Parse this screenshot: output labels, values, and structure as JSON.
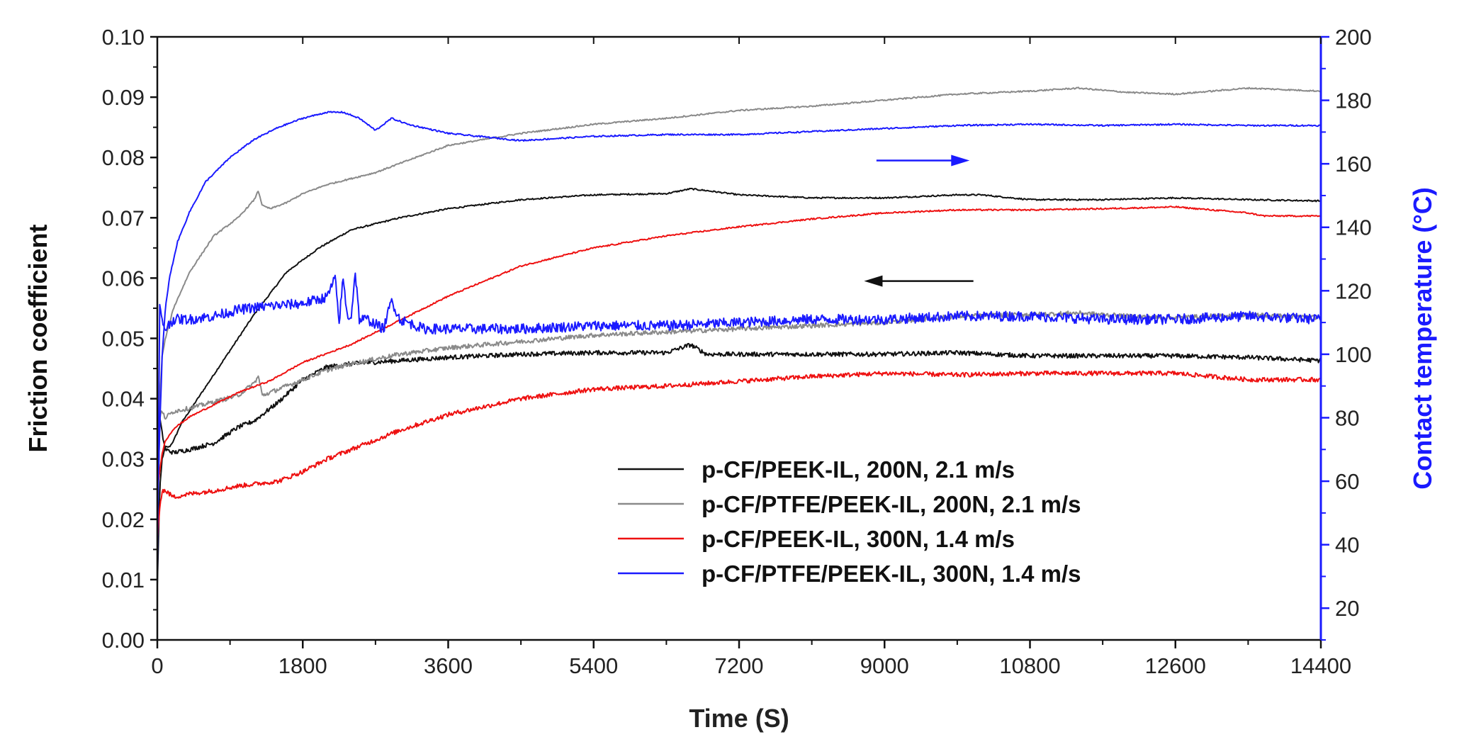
{
  "chart_data": {
    "type": "line",
    "xlabel": "Time (S)",
    "ylabel": "Friction coefficient",
    "y2label": "Contact temperature (°C)",
    "xlim": [
      0,
      14400
    ],
    "ylim": [
      0,
      0.1
    ],
    "y2lim": [
      10,
      200
    ],
    "x_ticks": [
      "0",
      "1800",
      "3600",
      "5400",
      "7200",
      "9000",
      "10800",
      "12600",
      "14400"
    ],
    "y_ticks": [
      "0.00",
      "0.01",
      "0.02",
      "0.03",
      "0.04",
      "0.05",
      "0.06",
      "0.07",
      "0.08",
      "0.09",
      "0.10"
    ],
    "y2_ticks": [
      "20",
      "40",
      "60",
      "80",
      "100",
      "120",
      "140",
      "160",
      "180",
      "200"
    ],
    "legend": {
      "placement": "bottom-right"
    },
    "series": [
      {
        "name": "p-CF/PEEK-IL, 200N, 2.1 m/s",
        "color": "#111111",
        "friction": {
          "x": [
            0,
            30,
            60,
            100,
            150,
            200,
            300,
            500,
            800,
            1200,
            1600,
            2000,
            2400,
            3000,
            3600,
            4500,
            5400,
            6300,
            6600,
            6800,
            7200,
            8100,
            9000,
            9900,
            10200,
            10800,
            11700,
            12600,
            13500,
            14400
          ],
          "y": [
            0.009,
            0.025,
            0.03,
            0.032,
            0.032,
            0.033,
            0.036,
            0.04,
            0.046,
            0.054,
            0.061,
            0.065,
            0.068,
            0.07,
            0.0715,
            0.073,
            0.0738,
            0.074,
            0.0748,
            0.0745,
            0.0738,
            0.0733,
            0.0733,
            0.0738,
            0.0738,
            0.073,
            0.073,
            0.0733,
            0.073,
            0.0728
          ]
        },
        "temperature": {
          "x": [
            0,
            30,
            60,
            100,
            200,
            400,
            700,
            1000,
            1200,
            1500,
            1800,
            2100,
            2400,
            3000,
            3600,
            4500,
            5400,
            6300,
            6600,
            6800,
            7200,
            8100,
            9000,
            9900,
            10800,
            11700,
            12600,
            13500,
            14400
          ],
          "y": [
            40,
            80,
            75,
            70,
            69,
            70,
            72,
            77,
            79,
            85,
            92,
            96,
            97,
            98,
            99,
            100,
            100.5,
            100.5,
            103,
            100,
            100,
            100,
            100,
            100.5,
            99.5,
            99.5,
            99.5,
            99,
            98
          ]
        }
      },
      {
        "name": "p-CF/PTFE/PEEK-IL, 200N, 2.1 m/s",
        "color": "#8a8a8a",
        "friction": {
          "x": [
            0,
            30,
            60,
            100,
            200,
            400,
            700,
            1000,
            1200,
            1250,
            1300,
            1400,
            1600,
            1800,
            2100,
            2400,
            2700,
            3000,
            3600,
            4500,
            5400,
            6300,
            7200,
            8100,
            9000,
            9900,
            10800,
            11400,
            12000,
            12600,
            13500,
            14400
          ],
          "y": [
            0.03,
            0.04,
            0.047,
            0.05,
            0.055,
            0.061,
            0.067,
            0.07,
            0.073,
            0.0745,
            0.072,
            0.0715,
            0.0725,
            0.074,
            0.0755,
            0.0765,
            0.0775,
            0.079,
            0.082,
            0.084,
            0.0855,
            0.0865,
            0.0878,
            0.0885,
            0.0895,
            0.0905,
            0.091,
            0.0915,
            0.0908,
            0.0905,
            0.0915,
            0.091
          ]
        },
        "temperature": {
          "x": [
            0,
            50,
            100,
            200,
            400,
            700,
            1000,
            1200,
            1250,
            1300,
            1600,
            2100,
            2400,
            3000,
            3600,
            4500,
            5400,
            6300,
            7200,
            8100,
            9000,
            9900,
            10800,
            11400,
            12000,
            12600,
            13500,
            14400
          ],
          "y": [
            75,
            82,
            80,
            82,
            83,
            85,
            87,
            91,
            93,
            87,
            90,
            95,
            97,
            100,
            102,
            104,
            106,
            107,
            108,
            109,
            110,
            112,
            112.5,
            113,
            112,
            111.5,
            112.5,
            111.5
          ]
        }
      },
      {
        "name": "p-CF/PEEK-IL, 300N, 1.4 m/s",
        "color": "#ee1111",
        "friction": {
          "x": [
            0,
            30,
            60,
            100,
            200,
            400,
            700,
            1000,
            1400,
            1800,
            2400,
            3000,
            3600,
            4500,
            5400,
            6300,
            7200,
            8100,
            9000,
            9900,
            10800,
            11700,
            12600,
            13500,
            13700,
            14400
          ],
          "y": [
            0.025,
            0.028,
            0.031,
            0.033,
            0.035,
            0.037,
            0.039,
            0.041,
            0.043,
            0.046,
            0.049,
            0.053,
            0.057,
            0.062,
            0.065,
            0.067,
            0.0685,
            0.0698,
            0.0708,
            0.0713,
            0.0713,
            0.0715,
            0.0718,
            0.0708,
            0.0703,
            0.0703
          ]
        },
        "temperature": {
          "x": [
            0,
            30,
            60,
            100,
            200,
            400,
            700,
            1000,
            1500,
            1800,
            2100,
            2400,
            3000,
            3600,
            4500,
            5400,
            6300,
            7200,
            8100,
            9000,
            9900,
            10800,
            11700,
            12600,
            13500,
            14400
          ],
          "y": [
            40,
            52,
            57,
            57,
            55,
            56,
            57,
            58.5,
            60,
            63,
            67,
            70,
            76,
            81,
            86,
            89,
            90,
            91.5,
            93,
            94,
            93.5,
            94,
            94,
            94,
            92,
            92
          ]
        }
      },
      {
        "name": "p-CF/PTFE/PEEK-IL, 300N, 1.4 m/s",
        "color": "#1a1aff",
        "friction": {
          "x": [
            0,
            30,
            60,
            100,
            150,
            250,
            400,
            600,
            900,
            1200,
            1500,
            1800,
            2100,
            2300,
            2500,
            2700,
            2800,
            2900,
            3100,
            3600,
            4500,
            5400,
            6300,
            7200,
            8100,
            9000,
            9900,
            10800,
            11700,
            12600,
            13500,
            14400
          ],
          "y": [
            0.02,
            0.035,
            0.047,
            0.055,
            0.06,
            0.066,
            0.071,
            0.076,
            0.08,
            0.083,
            0.085,
            0.0865,
            0.0875,
            0.0875,
            0.0865,
            0.0845,
            0.0855,
            0.0865,
            0.0855,
            0.084,
            0.0828,
            0.0835,
            0.0838,
            0.0838,
            0.0843,
            0.0848,
            0.0853,
            0.0855,
            0.0853,
            0.0855,
            0.0853,
            0.0853
          ]
        },
        "temperature": {
          "x": [
            0,
            30,
            60,
            100,
            200,
            400,
            700,
            1000,
            1300,
            1800,
            2100,
            2200,
            2250,
            2300,
            2350,
            2400,
            2450,
            2500,
            2600,
            2800,
            2900,
            3000,
            3300,
            3600,
            4500,
            5400,
            6300,
            7200,
            8100,
            9000,
            9900,
            10800,
            11700,
            12600,
            13500,
            14400
          ],
          "y": [
            30,
            115,
            110,
            108,
            111,
            111,
            112,
            114,
            115,
            116,
            118,
            124,
            110,
            124,
            112,
            112,
            126,
            111,
            111,
            108,
            117,
            111,
            108,
            108,
            108,
            109,
            109,
            110,
            111,
            111,
            112,
            112,
            111,
            111,
            112,
            111
          ]
        }
      }
    ],
    "annotations": [
      {
        "type": "arrow",
        "direction": "right",
        "color": "#1a1aff",
        "meaning": "blue curves read on right axis",
        "x_range": [
          8900,
          10000
        ],
        "y": 0.0795
      },
      {
        "type": "arrow",
        "direction": "left",
        "color": "#111111",
        "meaning": "curves read on left axis",
        "x_range": [
          8800,
          10100
        ],
        "y": 0.0595
      }
    ]
  }
}
